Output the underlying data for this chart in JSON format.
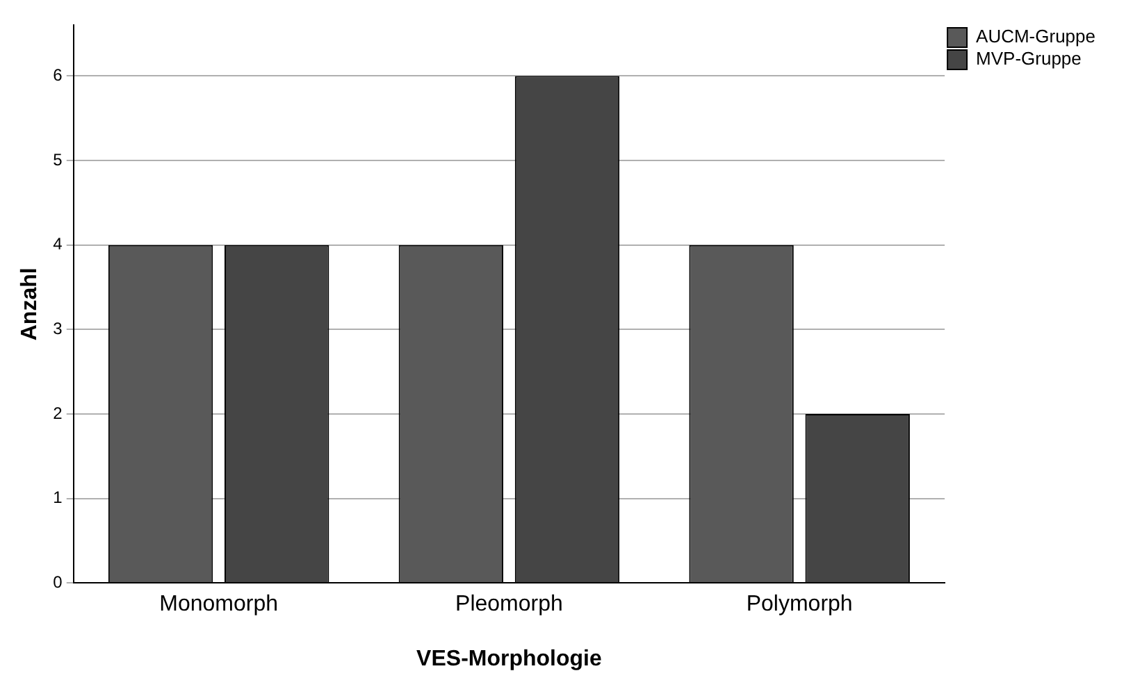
{
  "chart_data": {
    "type": "bar",
    "xlabel": "VES-Morphologie",
    "ylabel": "Anzahl",
    "categories": [
      "Monomorph",
      "Pleomorph",
      "Polymorph"
    ],
    "series": [
      {
        "name": "AUCM-Gruppe",
        "color": "#595959",
        "values": [
          4,
          4,
          4
        ]
      },
      {
        "name": "MVP-Gruppe",
        "color": "#454545",
        "values": [
          4,
          6,
          2
        ]
      }
    ],
    "ylim": [
      0,
      6.6
    ],
    "yticks": [
      0,
      1,
      2,
      3,
      4,
      5,
      6
    ],
    "grid": "y",
    "legend": "top right"
  }
}
